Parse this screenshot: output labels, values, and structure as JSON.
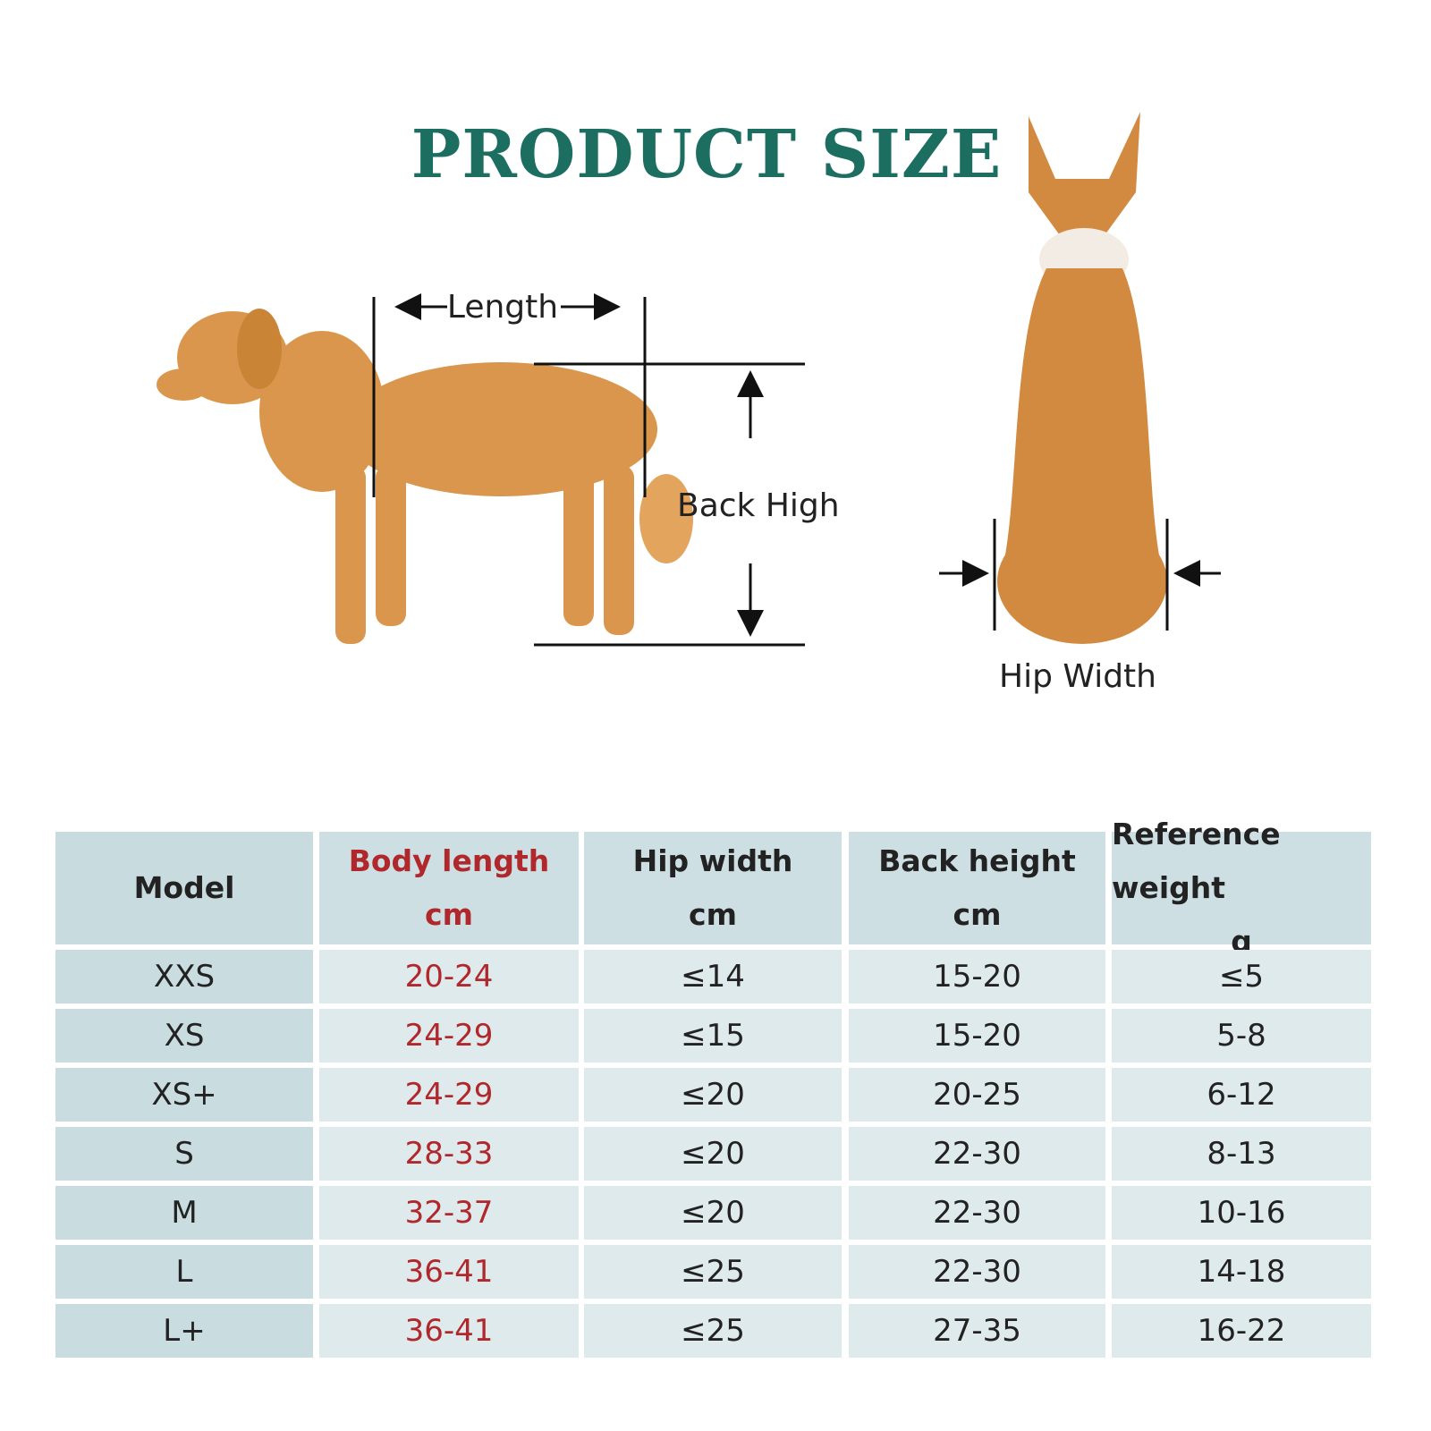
{
  "header": {
    "title": "PRODUCT SIZE"
  },
  "diagram": {
    "labels": {
      "length": "Length",
      "back_high": "Back High",
      "hip_width": "Hip Width"
    }
  },
  "table": {
    "columns": [
      {
        "name": "Model"
      },
      {
        "name": "Body length",
        "unit": "cm"
      },
      {
        "name": "Hip width",
        "unit": "cm"
      },
      {
        "name": "Back height",
        "unit": "cm"
      },
      {
        "name": "Reference weight",
        "unit": "g"
      }
    ],
    "rows": [
      [
        "XXS",
        "20-24",
        "≤14",
        "15-20",
        "≤5"
      ],
      [
        "XS",
        "24-29",
        "≤15",
        "15-20",
        "5-8"
      ],
      [
        "XS+",
        "24-29",
        "≤20",
        "20-25",
        "6-12"
      ],
      [
        "S",
        "28-33",
        "≤20",
        "22-30",
        "8-13"
      ],
      [
        "M",
        "32-37",
        "≤20",
        "22-30",
        "10-16"
      ],
      [
        "L",
        "36-41",
        "≤25",
        "22-30",
        "14-18"
      ],
      [
        "L+",
        "36-41",
        "≤25",
        "27-35",
        "16-22"
      ]
    ]
  }
}
